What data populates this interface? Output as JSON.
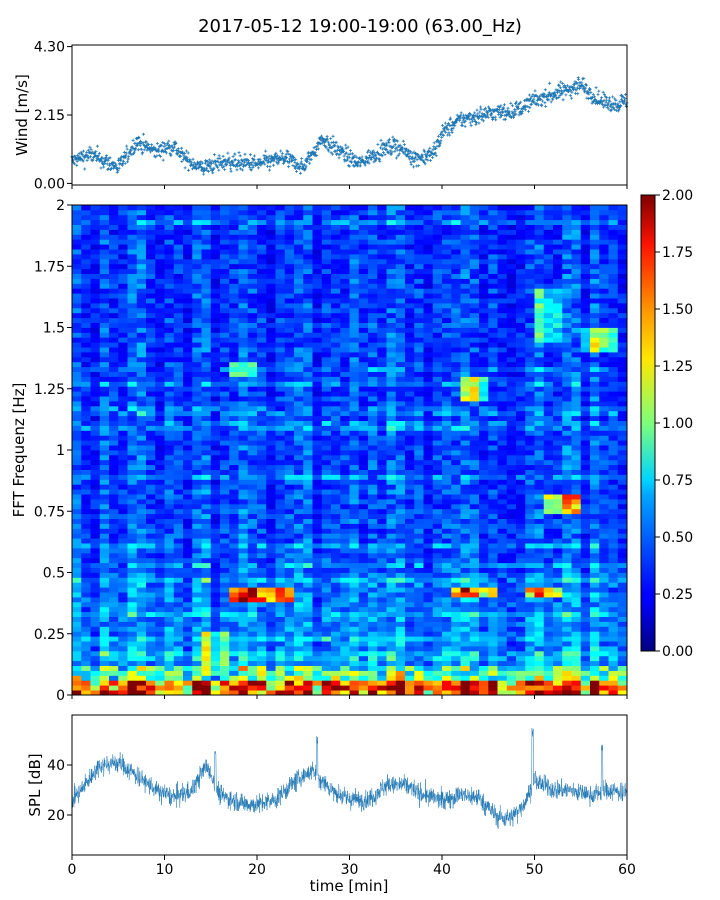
{
  "chart_data": [
    {
      "panel": "wind",
      "type": "scatter",
      "title": "2017-05-12 19:00-19:00 (63.00_Hz)",
      "ylabel": "Wind [m/s]",
      "xlabel": "",
      "xlim": [
        0,
        60
      ],
      "ylim": [
        -0.05,
        4.35
      ],
      "yticks": [
        0.0,
        2.15,
        4.3
      ],
      "ytick_labels": [
        "0.00",
        "2.15",
        "4.30"
      ],
      "xticks": [
        0,
        10,
        20,
        30,
        40,
        50,
        60
      ],
      "color": "#1f77b4",
      "marker": "+",
      "trend": {
        "x": [
          0,
          2,
          5,
          7,
          9,
          11,
          12,
          14,
          17,
          20,
          23,
          25,
          27,
          29,
          31,
          33,
          35,
          37,
          39,
          40,
          42,
          45,
          48,
          50,
          53,
          55,
          57,
          59,
          60
        ],
        "y": [
          0.7,
          0.9,
          0.5,
          1.3,
          1.0,
          1.2,
          0.8,
          0.5,
          0.7,
          0.6,
          0.8,
          0.5,
          1.4,
          1.0,
          0.6,
          1.0,
          1.2,
          0.8,
          0.9,
          1.6,
          2.0,
          2.2,
          2.3,
          2.6,
          2.9,
          3.1,
          2.6,
          2.5,
          2.6
        ]
      },
      "spread": 0.4,
      "n_points": 1400
    },
    {
      "panel": "spectrogram",
      "type": "heatmap",
      "ylabel": "FFT Frequenz [Hz]",
      "xlim": [
        0,
        60
      ],
      "ylim": [
        0,
        2
      ],
      "yticks": [
        0,
        0.25,
        0.5,
        0.75,
        1,
        1.25,
        1.5,
        1.75,
        2
      ],
      "ytick_labels": [
        "0",
        "0.25",
        "0.5",
        "0.75",
        "1",
        "1.25",
        "1.5",
        "1.75",
        "2"
      ],
      "colormap": "jet",
      "colorbar": {
        "vmin": 0.0,
        "vmax": 2.0,
        "ticks": [
          0.0,
          0.25,
          0.5,
          0.75,
          1.0,
          1.25,
          1.5,
          1.75,
          2.0
        ],
        "tick_labels": [
          "0.00",
          "0.25",
          "0.50",
          "0.75",
          "1.00",
          "1.25",
          "1.50",
          "1.75",
          "2.00"
        ]
      },
      "n_time_bins": 60,
      "n_freq_bins": 100,
      "low_freq_band": {
        "freq_max": 0.05,
        "level": 1.6
      },
      "hotspots": [
        {
          "t": [
            17,
            24
          ],
          "f": [
            0.38,
            0.44
          ],
          "level": 1.7
        },
        {
          "t": [
            14,
            17
          ],
          "f": [
            0.1,
            0.26
          ],
          "level": 1.0
        },
        {
          "t": [
            41,
            46
          ],
          "f": [
            0.4,
            0.44
          ],
          "level": 1.5
        },
        {
          "t": [
            49,
            53
          ],
          "f": [
            0.4,
            0.44
          ],
          "level": 1.4
        },
        {
          "t": [
            42,
            45
          ],
          "f": [
            1.2,
            1.3
          ],
          "level": 1.1
        },
        {
          "t": [
            51,
            55
          ],
          "f": [
            0.75,
            0.82
          ],
          "level": 1.2
        },
        {
          "t": [
            55,
            59
          ],
          "f": [
            1.4,
            1.5
          ],
          "level": 1.0
        },
        {
          "t": [
            50,
            53
          ],
          "f": [
            1.45,
            1.65
          ],
          "level": 0.8
        },
        {
          "t": [
            17,
            20
          ],
          "f": [
            1.3,
            1.35
          ],
          "level": 0.9
        }
      ]
    },
    {
      "panel": "spl",
      "type": "line",
      "ylabel": "SPL [dB]",
      "xlabel": "time [min]",
      "xlim": [
        0,
        60
      ],
      "ylim": [
        4,
        60
      ],
      "yticks": [
        20,
        40
      ],
      "ytick_labels": [
        "20",
        "40"
      ],
      "xticks": [
        0,
        10,
        20,
        30,
        40,
        50,
        60
      ],
      "xtick_labels": [
        "0",
        "10",
        "20",
        "30",
        "40",
        "50",
        "60"
      ],
      "color": "#1f77b4",
      "envelope": {
        "x": [
          0,
          1,
          3,
          5,
          7,
          9,
          11,
          13,
          14.5,
          16,
          18,
          20,
          22,
          24,
          26,
          28,
          30,
          32,
          34,
          36,
          38,
          40,
          42,
          44,
          46,
          47.5,
          49,
          50,
          52,
          54,
          56,
          58,
          60
        ],
        "y": [
          26,
          30,
          40,
          41,
          36,
          30,
          27,
          30,
          40,
          28,
          25,
          24,
          26,
          33,
          38,
          30,
          26,
          26,
          32,
          32,
          28,
          26,
          28,
          27,
          19,
          19,
          25,
          34,
          30,
          30,
          28,
          30,
          29
        ]
      },
      "noise": 5,
      "spikes": [
        {
          "x": 26.5,
          "y": 52
        },
        {
          "x": 49.8,
          "y": 55
        },
        {
          "x": 57.3,
          "y": 49
        },
        {
          "x": 15.5,
          "y": 47
        }
      ],
      "n_points": 2400
    }
  ]
}
